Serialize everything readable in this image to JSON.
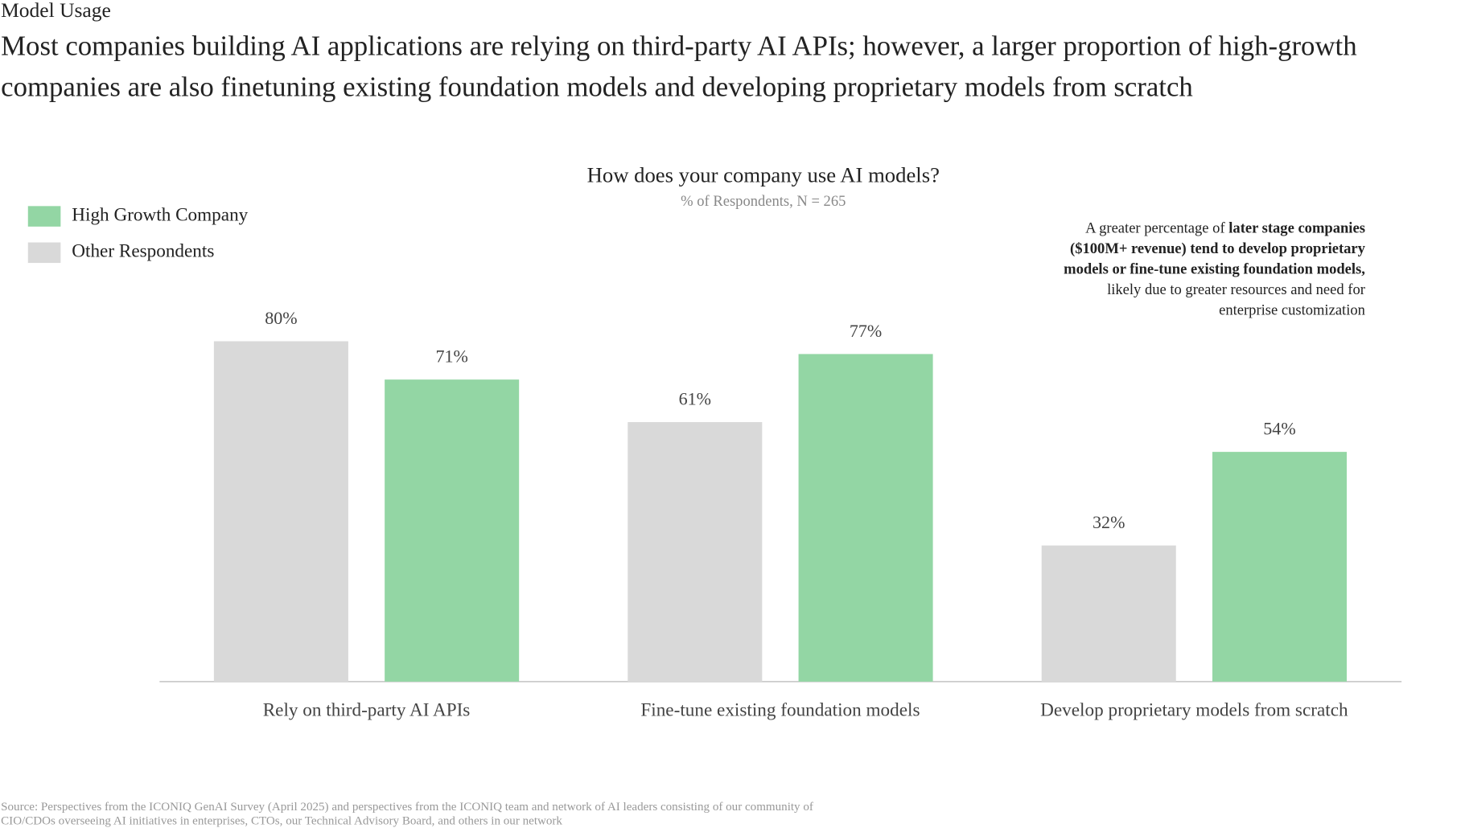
{
  "header": {
    "section": "Model Usage",
    "headline": [
      "Most companies building AI applications are relying on third-party AI APIs; however, a larger proportion of high-growth",
      "companies are also finetuning existing foundation models and developing proprietary models from scratch"
    ]
  },
  "chart_data": {
    "type": "bar",
    "title": "How does your company use AI models?",
    "subtitle": "% of Respondents, N = 265",
    "categories": [
      "Rely on third-party AI APIs",
      "Fine-tune existing foundation models",
      "Develop proprietary models from scratch"
    ],
    "series": [
      {
        "name": "Other Respondents",
        "color": "#d9d9d9",
        "values": [
          80,
          61,
          32
        ],
        "value_labels": [
          "80%",
          "61%",
          "32%"
        ]
      },
      {
        "name": "High Growth Company",
        "color": "#93d6a4",
        "values": [
          71,
          77,
          54
        ],
        "value_labels": [
          "71%",
          "77%",
          "54%"
        ]
      }
    ],
    "annotation": [
      [
        {
          "text": "A greater percentage of ",
          "bold": false
        },
        {
          "text": "later stage companies",
          "bold": true
        }
      ],
      [
        {
          "text": "($100M+ revenue) tend to develop proprietary",
          "bold": true
        }
      ],
      [
        {
          "text": "models or fine-tune existing foundation models,",
          "bold": true
        }
      ],
      [
        {
          "text": "likely due to greater resources and need for",
          "bold": false
        }
      ],
      [
        {
          "text": "enterprise customization",
          "bold": false
        }
      ]
    ]
  },
  "source": [
    "Source: Perspectives from the ICONIQ GenAI Survey (April 2025) and perspectives from the ICONIQ team and network of AI leaders consisting of our community of",
    "CIO/CDOs overseeing AI initiatives in enterprises, CTOs, our Technical Advisory Board, and others in our network"
  ]
}
